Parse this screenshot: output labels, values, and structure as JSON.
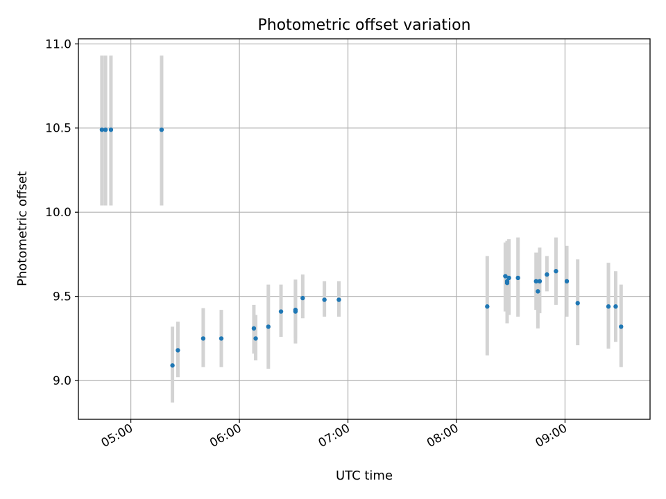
{
  "chart_data": {
    "type": "scatter",
    "title": "Photometric offset variation",
    "xlabel": "UTC time",
    "ylabel": "Photometric offset",
    "x_unit": "UTC time of day (HH:MM)",
    "xlim": [
      "04:31",
      "09:47"
    ],
    "ylim": [
      8.77,
      11.03
    ],
    "x_ticks": [
      "05:00",
      "06:00",
      "07:00",
      "08:00",
      "09:00"
    ],
    "y_ticks": [
      9.0,
      9.5,
      10.0,
      10.5,
      11.0
    ],
    "y_tick_labels": [
      "9.0",
      "9.5",
      "10.0",
      "10.5",
      "11.0"
    ],
    "grid": true,
    "colors": {
      "points": "#1f77b4",
      "error_bars": "#d3d3d3",
      "grid": "#b0b0b0"
    },
    "series": [
      {
        "points": [
          {
            "x": "04:44",
            "y": 10.49,
            "y_low": 10.04,
            "y_high": 10.93
          },
          {
            "x": "04:46",
            "y": 10.49,
            "y_low": 10.04,
            "y_high": 10.93
          },
          {
            "x": "04:49",
            "y": 10.49,
            "y_low": 10.04,
            "y_high": 10.93
          },
          {
            "x": "05:17",
            "y": 10.49,
            "y_low": 10.04,
            "y_high": 10.93
          },
          {
            "x": "05:23",
            "y": 9.09,
            "y_low": 8.87,
            "y_high": 9.32
          },
          {
            "x": "05:26",
            "y": 9.18,
            "y_low": 9.02,
            "y_high": 9.35
          },
          {
            "x": "05:40",
            "y": 9.25,
            "y_low": 9.08,
            "y_high": 9.43
          },
          {
            "x": "05:50",
            "y": 9.25,
            "y_low": 9.08,
            "y_high": 9.42
          },
          {
            "x": "06:08",
            "y": 9.31,
            "y_low": 9.16,
            "y_high": 9.45
          },
          {
            "x": "06:09",
            "y": 9.25,
            "y_low": 9.12,
            "y_high": 9.39
          },
          {
            "x": "06:16",
            "y": 9.32,
            "y_low": 9.07,
            "y_high": 9.57
          },
          {
            "x": "06:23",
            "y": 9.41,
            "y_low": 9.26,
            "y_high": 9.57
          },
          {
            "x": "06:31",
            "y": 9.41,
            "y_low": 9.22,
            "y_high": 9.6
          },
          {
            "x": "06:31",
            "y": 9.42,
            "y_low": 9.25,
            "y_high": 9.59
          },
          {
            "x": "06:35",
            "y": 9.49,
            "y_low": 9.37,
            "y_high": 9.63
          },
          {
            "x": "06:47",
            "y": 9.48,
            "y_low": 9.38,
            "y_high": 9.59
          },
          {
            "x": "06:55",
            "y": 9.48,
            "y_low": 9.38,
            "y_high": 9.59
          },
          {
            "x": "08:17",
            "y": 9.44,
            "y_low": 9.15,
            "y_high": 9.74
          },
          {
            "x": "08:27",
            "y": 9.62,
            "y_low": 9.41,
            "y_high": 9.82
          },
          {
            "x": "08:28",
            "y": 9.58,
            "y_low": 9.34,
            "y_high": 9.82
          },
          {
            "x": "08:28",
            "y": 9.59,
            "y_low": 9.35,
            "y_high": 9.83
          },
          {
            "x": "08:29",
            "y": 9.61,
            "y_low": 9.39,
            "y_high": 9.84
          },
          {
            "x": "08:34",
            "y": 9.61,
            "y_low": 9.38,
            "y_high": 9.85
          },
          {
            "x": "08:44",
            "y": 9.59,
            "y_low": 9.42,
            "y_high": 9.76
          },
          {
            "x": "08:45",
            "y": 9.53,
            "y_low": 9.31,
            "y_high": 9.76
          },
          {
            "x": "08:46",
            "y": 9.59,
            "y_low": 9.4,
            "y_high": 9.79
          },
          {
            "x": "08:50",
            "y": 9.63,
            "y_low": 9.53,
            "y_high": 9.74
          },
          {
            "x": "08:55",
            "y": 9.65,
            "y_low": 9.45,
            "y_high": 9.85
          },
          {
            "x": "09:01",
            "y": 9.59,
            "y_low": 9.38,
            "y_high": 9.8
          },
          {
            "x": "09:07",
            "y": 9.46,
            "y_low": 9.21,
            "y_high": 9.72
          },
          {
            "x": "09:24",
            "y": 9.44,
            "y_low": 9.19,
            "y_high": 9.7
          },
          {
            "x": "09:28",
            "y": 9.44,
            "y_low": 9.23,
            "y_high": 9.65
          },
          {
            "x": "09:31",
            "y": 9.32,
            "y_low": 9.08,
            "y_high": 9.57
          }
        ]
      }
    ]
  }
}
